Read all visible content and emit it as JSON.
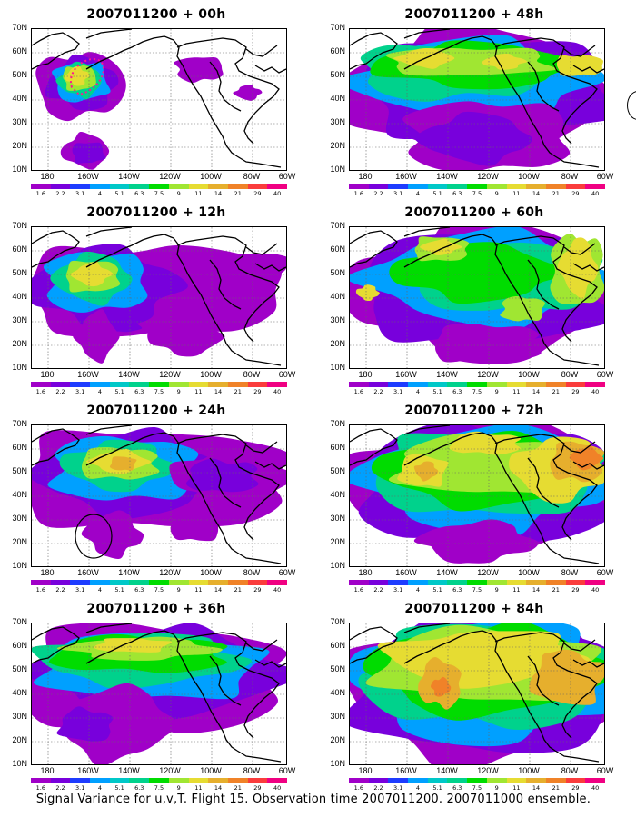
{
  "panels": [
    {
      "title": "2007011200 + 00h"
    },
    {
      "title": "2007011200 + 48h"
    },
    {
      "title": "2007011200 + 12h"
    },
    {
      "title": "2007011200 + 60h"
    },
    {
      "title": "2007011200 + 24h"
    },
    {
      "title": "2007011200 + 72h"
    },
    {
      "title": "2007011200 + 36h"
    },
    {
      "title": "2007011200 + 84h"
    }
  ],
  "axes": {
    "lat_labels": [
      "70N",
      "60N",
      "50N",
      "40N",
      "30N",
      "20N",
      "10N"
    ],
    "lon_labels": [
      "180",
      "160W",
      "140W",
      "120W",
      "100W",
      "80W",
      "60W"
    ]
  },
  "colorbar": {
    "labels": [
      "1.6",
      "2.2",
      "3.1",
      "4",
      "5.1",
      "6.3",
      "7.5",
      "9",
      "11",
      "14",
      "21",
      "29",
      "40"
    ],
    "colors": [
      "#a000c8",
      "#7800dc",
      "#1e3cff",
      "#00a0ff",
      "#00c8c8",
      "#00d28c",
      "#00dc00",
      "#a0e632",
      "#e6dc32",
      "#e6af2d",
      "#f08228",
      "#fa3c3c",
      "#f00082"
    ]
  },
  "caption": "Signal Variance for u,v,T. Flight 15. Observation time 2007011200. 2007011000 ensemble."
}
